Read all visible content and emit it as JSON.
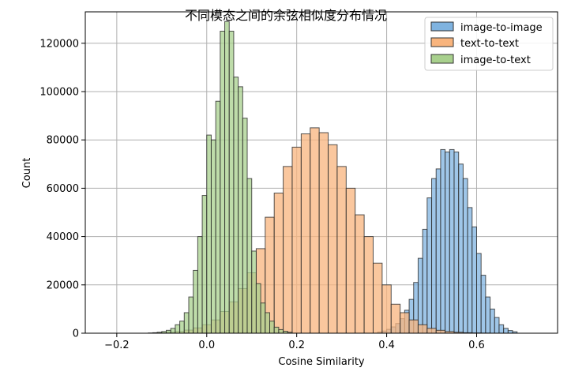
{
  "chart_data": {
    "type": "bar",
    "title": "不同模态之间的余弦相似度分布情况",
    "xlabel": "Cosine Similarity",
    "ylabel": "Count",
    "xlim": [
      -0.27,
      0.78
    ],
    "ylim": [
      0,
      133000
    ],
    "xticks": [
      -0.2,
      0.0,
      0.2,
      0.4,
      0.6
    ],
    "xtick_labels": [
      "−0.2",
      "0.0",
      "0.2",
      "0.4",
      "0.6"
    ],
    "yticks": [
      0,
      20000,
      40000,
      60000,
      80000,
      100000,
      120000
    ],
    "ytick_labels": [
      "0",
      "20000",
      "40000",
      "60000",
      "80000",
      "100000",
      "120000"
    ],
    "grid": true,
    "legend_position": "top-right",
    "series": [
      {
        "name": "image-to-image",
        "color": "#7fb3e0",
        "bin_width": 0.01,
        "bin_starts": [
          0.38,
          0.39,
          0.4,
          0.41,
          0.42,
          0.43,
          0.44,
          0.45,
          0.46,
          0.47,
          0.48,
          0.49,
          0.5,
          0.51,
          0.52,
          0.53,
          0.54,
          0.55,
          0.56,
          0.57,
          0.58,
          0.59,
          0.6,
          0.61,
          0.62,
          0.63,
          0.64,
          0.65,
          0.66,
          0.67,
          0.68
        ],
        "values": [
          500,
          900,
          1600,
          2600,
          4000,
          6000,
          9500,
          14000,
          21000,
          31000,
          43000,
          56000,
          64000,
          68000,
          76000,
          75000,
          76000,
          75000,
          70000,
          64000,
          52000,
          44000,
          33000,
          24000,
          15000,
          10000,
          6500,
          3500,
          2000,
          1100,
          600
        ]
      },
      {
        "name": "text-to-text",
        "color": "#f8b47d",
        "bin_width": 0.02,
        "bin_starts": [
          -0.13,
          -0.11,
          -0.09,
          -0.07,
          -0.05,
          -0.03,
          -0.01,
          0.01,
          0.03,
          0.05,
          0.07,
          0.09,
          0.11,
          0.13,
          0.15,
          0.17,
          0.19,
          0.21,
          0.23,
          0.25,
          0.27,
          0.29,
          0.31,
          0.33,
          0.35,
          0.37,
          0.39,
          0.41,
          0.43,
          0.45,
          0.47,
          0.49,
          0.51,
          0.53,
          0.55,
          0.57,
          0.59,
          0.61
        ],
        "values": [
          100,
          200,
          400,
          700,
          1300,
          2200,
          3500,
          5500,
          9000,
          13000,
          18500,
          25000,
          35000,
          48000,
          58000,
          69000,
          77000,
          82500,
          85000,
          83000,
          78000,
          69000,
          60000,
          49000,
          40000,
          29000,
          20000,
          12000,
          8500,
          5500,
          3500,
          2000,
          1200,
          700,
          400,
          200,
          100,
          50
        ]
      },
      {
        "name": "image-to-text",
        "color": "#a8d08d",
        "bin_width": 0.01,
        "bin_starts": [
          -0.12,
          -0.11,
          -0.1,
          -0.09,
          -0.08,
          -0.07,
          -0.06,
          -0.05,
          -0.04,
          -0.03,
          -0.02,
          -0.01,
          0.0,
          0.01,
          0.02,
          0.03,
          0.04,
          0.05,
          0.06,
          0.07,
          0.08,
          0.09,
          0.1,
          0.11,
          0.12,
          0.13,
          0.14,
          0.15,
          0.16,
          0.17,
          0.18
        ],
        "values": [
          200,
          400,
          700,
          1200,
          2000,
          3500,
          5000,
          8500,
          15000,
          26000,
          40000,
          57000,
          82000,
          80000,
          96000,
          125000,
          129000,
          125000,
          106000,
          102000,
          89000,
          64000,
          34000,
          20500,
          12500,
          8500,
          5000,
          2500,
          1500,
          800,
          400
        ]
      }
    ]
  }
}
